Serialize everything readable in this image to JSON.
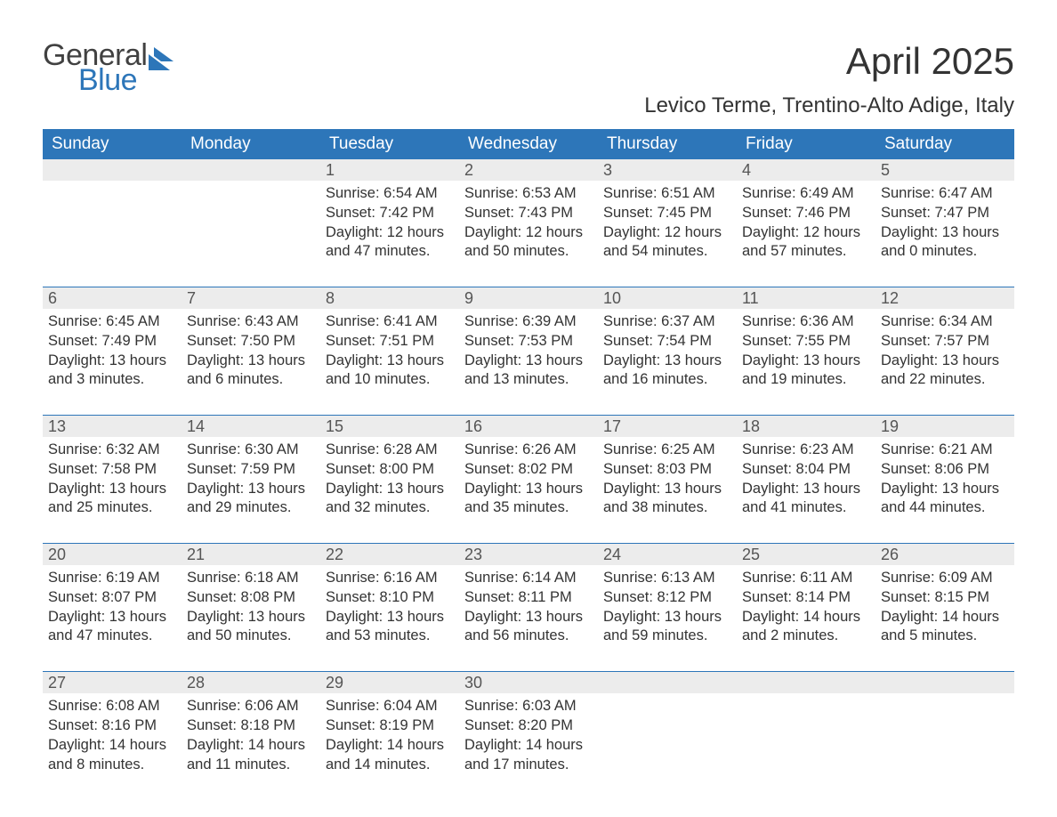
{
  "logo": {
    "word1": "General",
    "word2": "Blue",
    "word1_color": "#414141",
    "word2_color": "#2d76b9",
    "mark_color": "#2d76b9"
  },
  "title": "April 2025",
  "location": "Levico Terme, Trentino-Alto Adige, Italy",
  "header_bg": "#2d76b9",
  "header_fg": "#ffffff",
  "daynum_bg": "#ececec",
  "week_border": "#2d76b9",
  "text_color": "#333333",
  "day_names": [
    "Sunday",
    "Monday",
    "Tuesday",
    "Wednesday",
    "Thursday",
    "Friday",
    "Saturday"
  ],
  "weeks": [
    [
      null,
      null,
      {
        "n": "1",
        "sr": "6:54 AM",
        "ss": "7:42 PM",
        "dl": "12 hours and 47 minutes."
      },
      {
        "n": "2",
        "sr": "6:53 AM",
        "ss": "7:43 PM",
        "dl": "12 hours and 50 minutes."
      },
      {
        "n": "3",
        "sr": "6:51 AM",
        "ss": "7:45 PM",
        "dl": "12 hours and 54 minutes."
      },
      {
        "n": "4",
        "sr": "6:49 AM",
        "ss": "7:46 PM",
        "dl": "12 hours and 57 minutes."
      },
      {
        "n": "5",
        "sr": "6:47 AM",
        "ss": "7:47 PM",
        "dl": "13 hours and 0 minutes."
      }
    ],
    [
      {
        "n": "6",
        "sr": "6:45 AM",
        "ss": "7:49 PM",
        "dl": "13 hours and 3 minutes."
      },
      {
        "n": "7",
        "sr": "6:43 AM",
        "ss": "7:50 PM",
        "dl": "13 hours and 6 minutes."
      },
      {
        "n": "8",
        "sr": "6:41 AM",
        "ss": "7:51 PM",
        "dl": "13 hours and 10 minutes."
      },
      {
        "n": "9",
        "sr": "6:39 AM",
        "ss": "7:53 PM",
        "dl": "13 hours and 13 minutes."
      },
      {
        "n": "10",
        "sr": "6:37 AM",
        "ss": "7:54 PM",
        "dl": "13 hours and 16 minutes."
      },
      {
        "n": "11",
        "sr": "6:36 AM",
        "ss": "7:55 PM",
        "dl": "13 hours and 19 minutes."
      },
      {
        "n": "12",
        "sr": "6:34 AM",
        "ss": "7:57 PM",
        "dl": "13 hours and 22 minutes."
      }
    ],
    [
      {
        "n": "13",
        "sr": "6:32 AM",
        "ss": "7:58 PM",
        "dl": "13 hours and 25 minutes."
      },
      {
        "n": "14",
        "sr": "6:30 AM",
        "ss": "7:59 PM",
        "dl": "13 hours and 29 minutes."
      },
      {
        "n": "15",
        "sr": "6:28 AM",
        "ss": "8:00 PM",
        "dl": "13 hours and 32 minutes."
      },
      {
        "n": "16",
        "sr": "6:26 AM",
        "ss": "8:02 PM",
        "dl": "13 hours and 35 minutes."
      },
      {
        "n": "17",
        "sr": "6:25 AM",
        "ss": "8:03 PM",
        "dl": "13 hours and 38 minutes."
      },
      {
        "n": "18",
        "sr": "6:23 AM",
        "ss": "8:04 PM",
        "dl": "13 hours and 41 minutes."
      },
      {
        "n": "19",
        "sr": "6:21 AM",
        "ss": "8:06 PM",
        "dl": "13 hours and 44 minutes."
      }
    ],
    [
      {
        "n": "20",
        "sr": "6:19 AM",
        "ss": "8:07 PM",
        "dl": "13 hours and 47 minutes."
      },
      {
        "n": "21",
        "sr": "6:18 AM",
        "ss": "8:08 PM",
        "dl": "13 hours and 50 minutes."
      },
      {
        "n": "22",
        "sr": "6:16 AM",
        "ss": "8:10 PM",
        "dl": "13 hours and 53 minutes."
      },
      {
        "n": "23",
        "sr": "6:14 AM",
        "ss": "8:11 PM",
        "dl": "13 hours and 56 minutes."
      },
      {
        "n": "24",
        "sr": "6:13 AM",
        "ss": "8:12 PM",
        "dl": "13 hours and 59 minutes."
      },
      {
        "n": "25",
        "sr": "6:11 AM",
        "ss": "8:14 PM",
        "dl": "14 hours and 2 minutes."
      },
      {
        "n": "26",
        "sr": "6:09 AM",
        "ss": "8:15 PM",
        "dl": "14 hours and 5 minutes."
      }
    ],
    [
      {
        "n": "27",
        "sr": "6:08 AM",
        "ss": "8:16 PM",
        "dl": "14 hours and 8 minutes."
      },
      {
        "n": "28",
        "sr": "6:06 AM",
        "ss": "8:18 PM",
        "dl": "14 hours and 11 minutes."
      },
      {
        "n": "29",
        "sr": "6:04 AM",
        "ss": "8:19 PM",
        "dl": "14 hours and 14 minutes."
      },
      {
        "n": "30",
        "sr": "6:03 AM",
        "ss": "8:20 PM",
        "dl": "14 hours and 17 minutes."
      },
      null,
      null,
      null
    ]
  ],
  "labels": {
    "sunrise": "Sunrise: ",
    "sunset": "Sunset: ",
    "daylight": "Daylight: "
  },
  "typography": {
    "title_fontsize": 42,
    "location_fontsize": 24,
    "dayname_fontsize": 19,
    "body_fontsize": 16.5
  }
}
